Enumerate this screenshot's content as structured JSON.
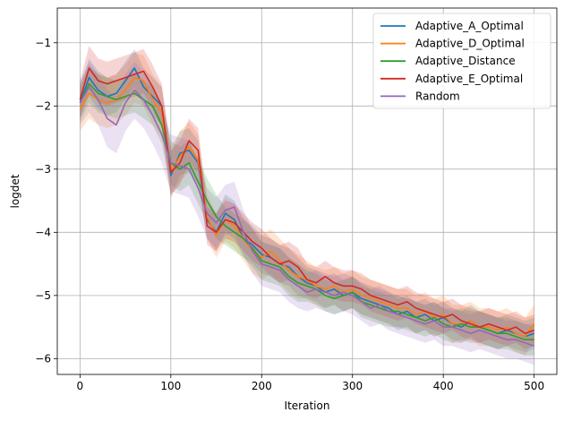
{
  "chart_data": {
    "type": "line",
    "title": "",
    "xlabel": "Iteration",
    "ylabel": "logdet",
    "xlim": [
      -25,
      525
    ],
    "ylim": [
      -6.25,
      -0.45
    ],
    "xticks": [
      0,
      100,
      200,
      300,
      400,
      500
    ],
    "yticks": [
      -6,
      -5,
      -4,
      -3,
      -2,
      -1
    ],
    "grid": true,
    "legend_position": "top-right",
    "shaded_band": "uncertainty band around each series",
    "x": [
      0,
      10,
      20,
      30,
      40,
      50,
      60,
      70,
      80,
      90,
      100,
      110,
      120,
      130,
      140,
      150,
      160,
      170,
      180,
      190,
      200,
      210,
      220,
      230,
      240,
      250,
      260,
      270,
      280,
      290,
      300,
      310,
      320,
      330,
      340,
      350,
      360,
      370,
      380,
      390,
      400,
      410,
      420,
      430,
      440,
      450,
      460,
      470,
      480,
      490,
      500
    ],
    "series": [
      {
        "name": "Adaptive_A_Optimal",
        "color": "#1f77b4",
        "values": [
          -1.95,
          -1.55,
          -1.75,
          -1.85,
          -1.8,
          -1.6,
          -1.4,
          -1.7,
          -1.85,
          -2.0,
          -3.1,
          -2.75,
          -2.7,
          -2.9,
          -3.8,
          -4.0,
          -3.7,
          -3.8,
          -4.1,
          -4.2,
          -4.35,
          -4.4,
          -4.5,
          -4.55,
          -4.7,
          -4.8,
          -4.85,
          -4.95,
          -4.9,
          -5.0,
          -4.95,
          -5.05,
          -5.1,
          -5.15,
          -5.2,
          -5.3,
          -5.25,
          -5.35,
          -5.3,
          -5.4,
          -5.35,
          -5.45,
          -5.5,
          -5.4,
          -5.5,
          -5.55,
          -5.6,
          -5.55,
          -5.6,
          -5.65,
          -5.6
        ],
        "band": [
          0.25,
          0.3,
          0.3,
          0.3,
          0.3,
          0.3,
          0.3,
          0.3,
          0.3,
          0.3,
          0.35,
          0.35,
          0.35,
          0.35,
          0.3,
          0.3,
          0.3,
          0.3,
          0.3,
          0.3,
          0.3,
          0.3,
          0.3,
          0.3,
          0.3,
          0.25,
          0.25,
          0.25,
          0.25,
          0.25,
          0.25,
          0.25,
          0.25,
          0.25,
          0.25,
          0.25,
          0.25,
          0.25,
          0.25,
          0.25,
          0.25,
          0.25,
          0.25,
          0.25,
          0.25,
          0.25,
          0.25,
          0.25,
          0.25,
          0.25,
          0.25
        ]
      },
      {
        "name": "Adaptive_D_Optimal",
        "color": "#ff7f0e",
        "values": [
          -2.05,
          -1.8,
          -1.9,
          -1.95,
          -1.9,
          -1.75,
          -1.55,
          -1.6,
          -1.9,
          -2.1,
          -3.05,
          -2.8,
          -2.65,
          -2.85,
          -3.75,
          -4.05,
          -3.8,
          -3.9,
          -4.1,
          -4.3,
          -4.4,
          -4.3,
          -4.45,
          -4.6,
          -4.7,
          -4.75,
          -4.85,
          -4.9,
          -4.85,
          -4.95,
          -4.9,
          -5.0,
          -5.05,
          -5.1,
          -5.15,
          -5.2,
          -5.2,
          -5.3,
          -5.25,
          -5.35,
          -5.3,
          -5.45,
          -5.45,
          -5.4,
          -5.5,
          -5.5,
          -5.55,
          -5.5,
          -5.6,
          -5.65,
          -5.45
        ],
        "band": [
          0.35,
          0.4,
          0.4,
          0.4,
          0.4,
          0.4,
          0.4,
          0.4,
          0.4,
          0.4,
          0.4,
          0.4,
          0.4,
          0.4,
          0.35,
          0.35,
          0.35,
          0.35,
          0.35,
          0.35,
          0.35,
          0.35,
          0.35,
          0.35,
          0.35,
          0.3,
          0.3,
          0.3,
          0.3,
          0.3,
          0.3,
          0.3,
          0.3,
          0.3,
          0.3,
          0.3,
          0.3,
          0.3,
          0.3,
          0.3,
          0.3,
          0.3,
          0.3,
          0.3,
          0.3,
          0.3,
          0.3,
          0.3,
          0.3,
          0.3,
          0.3
        ]
      },
      {
        "name": "Adaptive_Distance",
        "color": "#2ca02c",
        "values": [
          -1.95,
          -1.65,
          -1.8,
          -1.85,
          -1.9,
          -1.85,
          -1.8,
          -1.9,
          -2.0,
          -2.3,
          -2.9,
          -3.0,
          -2.9,
          -3.2,
          -3.5,
          -3.75,
          -3.9,
          -4.0,
          -4.1,
          -4.25,
          -4.45,
          -4.5,
          -4.55,
          -4.7,
          -4.8,
          -4.85,
          -4.9,
          -5.0,
          -5.05,
          -5.0,
          -4.95,
          -5.1,
          -5.15,
          -5.2,
          -5.25,
          -5.25,
          -5.3,
          -5.35,
          -5.4,
          -5.35,
          -5.45,
          -5.5,
          -5.45,
          -5.5,
          -5.5,
          -5.55,
          -5.6,
          -5.6,
          -5.65,
          -5.7,
          -5.7
        ],
        "band": [
          0.3,
          0.3,
          0.3,
          0.3,
          0.3,
          0.3,
          0.3,
          0.3,
          0.3,
          0.3,
          0.35,
          0.35,
          0.35,
          0.35,
          0.35,
          0.35,
          0.3,
          0.3,
          0.3,
          0.3,
          0.3,
          0.3,
          0.3,
          0.3,
          0.3,
          0.25,
          0.25,
          0.25,
          0.25,
          0.25,
          0.25,
          0.25,
          0.25,
          0.25,
          0.25,
          0.25,
          0.25,
          0.25,
          0.25,
          0.25,
          0.25,
          0.25,
          0.25,
          0.25,
          0.25,
          0.25,
          0.25,
          0.25,
          0.25,
          0.25,
          0.25
        ]
      },
      {
        "name": "Adaptive_E_Optimal",
        "color": "#d62728",
        "values": [
          -1.9,
          -1.4,
          -1.6,
          -1.65,
          -1.6,
          -1.55,
          -1.5,
          -1.45,
          -1.7,
          -2.0,
          -3.05,
          -2.9,
          -2.55,
          -2.7,
          -3.9,
          -4.0,
          -3.8,
          -3.85,
          -4.0,
          -4.15,
          -4.25,
          -4.4,
          -4.5,
          -4.45,
          -4.55,
          -4.75,
          -4.8,
          -4.7,
          -4.8,
          -4.85,
          -4.85,
          -4.9,
          -5.0,
          -5.05,
          -5.1,
          -5.15,
          -5.1,
          -5.2,
          -5.25,
          -5.3,
          -5.35,
          -5.3,
          -5.4,
          -5.45,
          -5.5,
          -5.45,
          -5.5,
          -5.55,
          -5.5,
          -5.6,
          -5.55
        ],
        "band": [
          0.3,
          0.35,
          0.35,
          0.35,
          0.35,
          0.35,
          0.35,
          0.35,
          0.35,
          0.35,
          0.35,
          0.35,
          0.35,
          0.35,
          0.3,
          0.3,
          0.3,
          0.3,
          0.3,
          0.3,
          0.3,
          0.3,
          0.3,
          0.3,
          0.3,
          0.25,
          0.25,
          0.25,
          0.25,
          0.25,
          0.25,
          0.25,
          0.25,
          0.25,
          0.25,
          0.25,
          0.25,
          0.25,
          0.25,
          0.25,
          0.25,
          0.25,
          0.25,
          0.25,
          0.25,
          0.25,
          0.25,
          0.25,
          0.25,
          0.25,
          0.25
        ]
      },
      {
        "name": "Random",
        "color": "#9467bd",
        "values": [
          -1.95,
          -1.7,
          -1.9,
          -2.2,
          -2.3,
          -1.95,
          -1.75,
          -1.9,
          -2.15,
          -2.45,
          -2.9,
          -2.95,
          -3.0,
          -3.3,
          -3.7,
          -3.85,
          -3.65,
          -3.6,
          -4.0,
          -4.3,
          -4.5,
          -4.55,
          -4.6,
          -4.75,
          -4.85,
          -4.95,
          -4.9,
          -4.95,
          -5.0,
          -4.95,
          -5.0,
          -5.1,
          -5.2,
          -5.15,
          -5.25,
          -5.3,
          -5.35,
          -5.4,
          -5.45,
          -5.4,
          -5.5,
          -5.5,
          -5.55,
          -5.6,
          -5.55,
          -5.6,
          -5.65,
          -5.7,
          -5.7,
          -5.75,
          -5.8
        ],
        "band": [
          0.35,
          0.4,
          0.4,
          0.45,
          0.45,
          0.45,
          0.45,
          0.45,
          0.45,
          0.45,
          0.45,
          0.45,
          0.45,
          0.45,
          0.4,
          0.4,
          0.4,
          0.4,
          0.35,
          0.35,
          0.35,
          0.35,
          0.35,
          0.35,
          0.35,
          0.3,
          0.3,
          0.3,
          0.3,
          0.3,
          0.3,
          0.3,
          0.3,
          0.3,
          0.3,
          0.3,
          0.3,
          0.3,
          0.3,
          0.3,
          0.3,
          0.3,
          0.3,
          0.3,
          0.3,
          0.3,
          0.3,
          0.3,
          0.3,
          0.3,
          0.3
        ]
      }
    ]
  }
}
